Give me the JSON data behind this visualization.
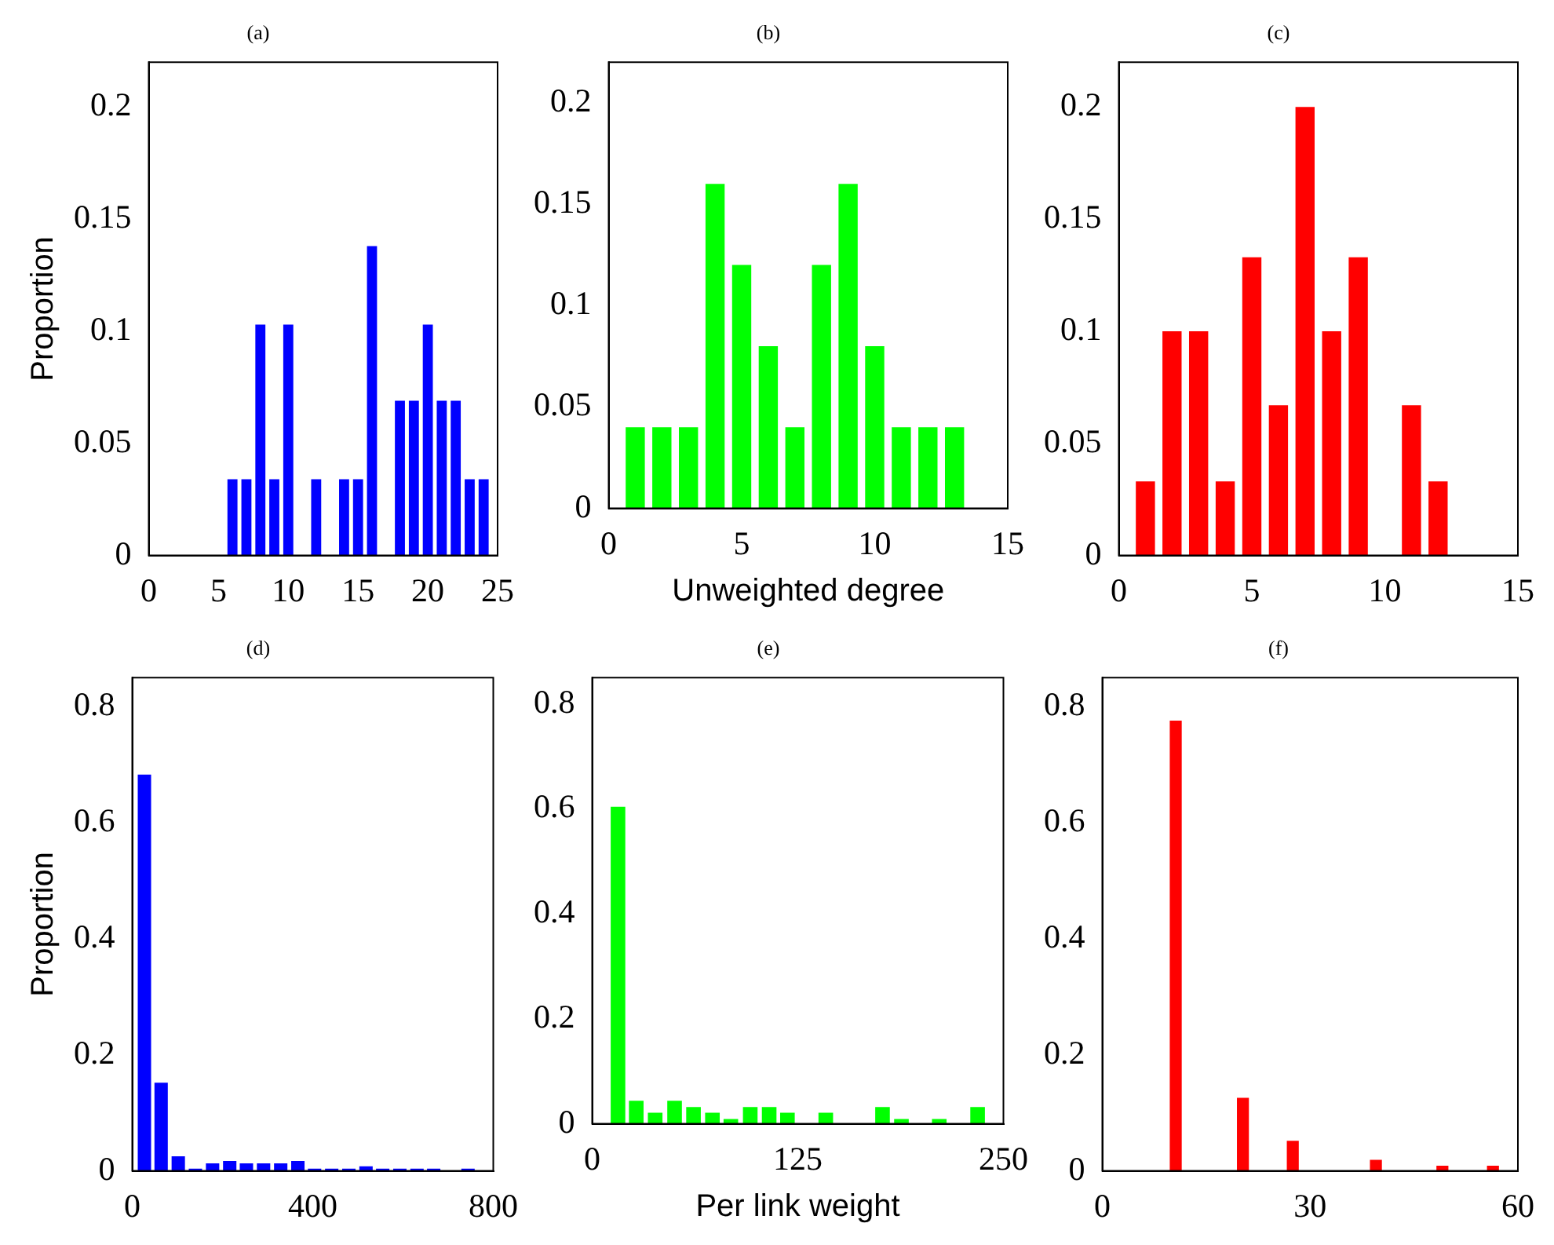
{
  "chart_data": [
    {
      "type": "bar",
      "title": "(a)",
      "ylabel": "Proportion",
      "color": "#0000ff",
      "x": [
        6,
        7,
        8,
        9,
        10,
        12,
        14,
        15,
        16,
        18,
        19,
        20,
        21,
        22,
        23,
        24
      ],
      "values": [
        0.034,
        0.034,
        0.103,
        0.034,
        0.103,
        0.034,
        0.034,
        0.034,
        0.138,
        0.069,
        0.069,
        0.103,
        0.069,
        0.069,
        0.034,
        0.034
      ],
      "xlim": [
        0,
        25
      ],
      "xticks": [
        0,
        5,
        10,
        15,
        20,
        25
      ],
      "ylim": [
        0,
        0.22
      ],
      "yticks": [
        0,
        0.05,
        0.1,
        0.15,
        0.2
      ]
    },
    {
      "type": "bar",
      "title": "(b)",
      "xlabel": "Unweighted degree",
      "color": "#00ff00",
      "x": [
        1,
        2,
        3,
        4,
        5,
        6,
        7,
        8,
        9,
        10,
        11,
        12,
        13
      ],
      "values": [
        0.04,
        0.04,
        0.04,
        0.16,
        0.12,
        0.08,
        0.04,
        0.12,
        0.16,
        0.08,
        0.04,
        0.04,
        0.04
      ],
      "xlim": [
        0,
        15
      ],
      "xticks": [
        0,
        5,
        10,
        15
      ],
      "ylim": [
        0,
        0.22
      ],
      "yticks": [
        0,
        0.05,
        0.1,
        0.15,
        0.2
      ]
    },
    {
      "type": "bar",
      "title": "(c)",
      "color": "#ff0000",
      "x": [
        1,
        2,
        3,
        4,
        5,
        6,
        7,
        8,
        9,
        11,
        12
      ],
      "values": [
        0.033,
        0.1,
        0.1,
        0.033,
        0.133,
        0.067,
        0.2,
        0.1,
        0.133,
        0.067,
        0.033
      ],
      "xlim": [
        0,
        15
      ],
      "xticks": [
        0,
        5,
        10,
        15
      ],
      "ylim": [
        0,
        0.22
      ],
      "yticks": [
        0,
        0.05,
        0.1,
        0.15,
        0.2
      ]
    },
    {
      "type": "bar",
      "title": "(d)",
      "ylabel": "Proportion",
      "color": "#0000ff",
      "x": [
        27,
        64,
        102,
        140,
        178,
        216,
        253,
        291,
        329,
        367,
        404,
        442,
        480,
        518,
        555,
        593,
        631,
        668,
        744
      ],
      "values": [
        0.683,
        0.152,
        0.025,
        0.004,
        0.013,
        0.017,
        0.013,
        0.013,
        0.013,
        0.017,
        0.004,
        0.004,
        0.004,
        0.008,
        0.004,
        0.004,
        0.004,
        0.004,
        0.004
      ],
      "xlim": [
        0,
        800
      ],
      "xticks": [
        0,
        400,
        800
      ],
      "ylim": [
        0,
        0.85
      ],
      "yticks": [
        0,
        0.2,
        0.4,
        0.6,
        0.8
      ]
    },
    {
      "type": "bar",
      "title": "(e)",
      "xlabel": "Per link weight",
      "color": "#00ff00",
      "x": [
        15.7,
        26.8,
        38.3,
        50.1,
        61.6,
        73.1,
        84.3,
        96.1,
        107.6,
        118.7,
        142,
        176.5,
        188,
        211,
        234.3
      ],
      "values": [
        0.604,
        0.044,
        0.021,
        0.044,
        0.032,
        0.021,
        0.009,
        0.032,
        0.032,
        0.021,
        0.021,
        0.032,
        0.009,
        0.009,
        0.032
      ],
      "xlim": [
        0,
        250
      ],
      "xticks": [
        0,
        125,
        250
      ],
      "ylim": [
        0,
        0.85
      ],
      "yticks": [
        0,
        0.2,
        0.4,
        0.6,
        0.8
      ]
    },
    {
      "type": "bar",
      "title": "(f)",
      "color": "#ff0000",
      "x": [
        10.6,
        20.3,
        27.5,
        39.5,
        49.1,
        56.4
      ],
      "values": [
        0.776,
        0.126,
        0.052,
        0.019,
        0.009,
        0.009
      ],
      "xlim": [
        0,
        60
      ],
      "xticks": [
        0,
        30,
        60
      ],
      "ylim": [
        0,
        0.85
      ],
      "yticks": [
        0,
        0.2,
        0.4,
        0.6,
        0.8
      ]
    }
  ]
}
